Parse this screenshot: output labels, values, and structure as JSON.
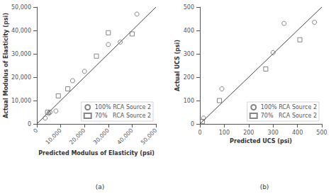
{
  "chart_data": [
    {
      "type": "scatter",
      "title": "(a)",
      "xlabel": "Predicted Modulus of Elasticity (psi)",
      "ylabel": "Actual Modulus of Elasticity (psi)",
      "xlim": [
        0,
        50000
      ],
      "ylim": [
        0,
        50000
      ],
      "xticks": [
        0,
        {
          "value": 10000,
          "label": "10,000"
        },
        {
          "value": 20000,
          "label": "20,000"
        },
        {
          "value": 30000,
          "label": "30,000"
        },
        {
          "value": 40000,
          "label": "40,000"
        },
        {
          "value": 50000,
          "label": "50,000"
        }
      ],
      "yticks": [
        0,
        {
          "value": 10000,
          "label": "10,000"
        },
        {
          "value": 20000,
          "label": "20,000"
        },
        {
          "value": 30000,
          "label": "30,000"
        },
        {
          "value": 40000,
          "label": "40,000"
        },
        {
          "value": 50000,
          "label": "50,000"
        }
      ],
      "grid": false,
      "legend": "lower right",
      "series": [
        {
          "type": "line",
          "color": "#444444",
          "x": [
            0,
            50000
          ],
          "values": [
            0,
            50000
          ]
        },
        {
          "type": "scatter",
          "name": "100% RCA Source 2",
          "marker": "circle",
          "color": "#666666",
          "x": [
            3500,
            5000,
            5500,
            8000,
            15000,
            20000,
            30000,
            35000,
            42000
          ],
          "values": [
            2500,
            4500,
            5000,
            5500,
            18500,
            22500,
            34000,
            35000,
            47000
          ]
        },
        {
          "type": "scatter",
          "name": "70%   RCA Source 2",
          "marker": "square",
          "color": "#666666",
          "x": [
            4500,
            9000,
            13000,
            25000,
            30000,
            40000
          ],
          "values": [
            5000,
            12000,
            15000,
            29000,
            39000,
            38500
          ]
        }
      ]
    },
    {
      "type": "scatter",
      "title": "(b)",
      "xlabel": "Predicted UCS (psi)",
      "ylabel": "Actual UCS (psi)",
      "xlim": [
        0,
        500
      ],
      "ylim": [
        0,
        500
      ],
      "xticks": [
        0,
        100,
        200,
        300,
        400,
        500
      ],
      "yticks": [
        0,
        100,
        200,
        300,
        400,
        500
      ],
      "grid": false,
      "legend": "lower right",
      "series": [
        {
          "type": "line",
          "color": "#444444",
          "x": [
            0,
            500
          ],
          "values": [
            0,
            500
          ]
        },
        {
          "type": "scatter",
          "name": "100% RCA Source 2",
          "marker": "circle",
          "color": "#666666",
          "x": [
            15,
            90,
            300,
            345,
            470
          ],
          "values": [
            25,
            150,
            305,
            430,
            435
          ]
        },
        {
          "type": "scatter",
          "name": "70%   RCA Source 2",
          "marker": "square",
          "color": "#666666",
          "x": [
            10,
            80,
            270,
            410
          ],
          "values": [
            10,
            100,
            235,
            360
          ]
        }
      ]
    }
  ]
}
